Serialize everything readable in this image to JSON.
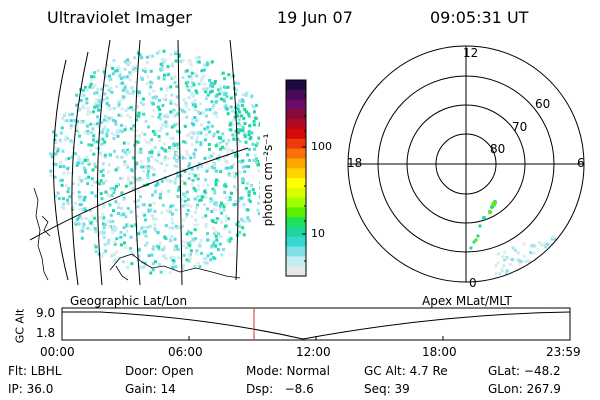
{
  "header": {
    "title": "Ultraviolet Imager",
    "date": "19 Jun 07",
    "time": "09:05:31 UT"
  },
  "colorbar": {
    "unit_label": "photon cm⁻²s⁻¹",
    "tick_labels": [
      "100",
      "10"
    ],
    "colors": [
      "#1a0a40",
      "#4a0a5a",
      "#6a0b6b",
      "#8a0a3a",
      "#b40a20",
      "#d60a0a",
      "#ee3a0a",
      "#f7730a",
      "#ffa500",
      "#ffd200",
      "#ffff00",
      "#d8ff00",
      "#a0ff00",
      "#5cf000",
      "#21e05a",
      "#20d69e",
      "#36d9d0",
      "#80e0e8",
      "#c4ecf2",
      "#e6e9ea"
    ]
  },
  "polar": {
    "mlt_labels": {
      "top": "12",
      "left": "18",
      "right": "6",
      "bottom": "0"
    },
    "lat_labels": [
      "60",
      "70",
      "80"
    ]
  },
  "timeline": {
    "y_axis_label": "GC Alt",
    "y_ticks": [
      "9.0",
      "1.8"
    ],
    "left_caption": "Geographic Lat/Lon",
    "right_caption": "Apex MLat/MLT",
    "x_ticks": [
      "00:00",
      "06:00",
      "12:00",
      "18:00",
      "23:59"
    ],
    "marker_time": "09:05:31"
  },
  "info": {
    "row1": [
      "Flt: LBHL",
      "Door: Open",
      "Mode: Normal",
      "GC Alt: 4.7 Re",
      "GLat: −48.2"
    ],
    "row2": [
      "IP: 36.0",
      "Gain: 14",
      "Dsp:   −8.6",
      "Seq: 39",
      "GLon: 267.9"
    ]
  },
  "colors": {
    "marker": "#cc3333",
    "aurora": "#20d69e"
  }
}
